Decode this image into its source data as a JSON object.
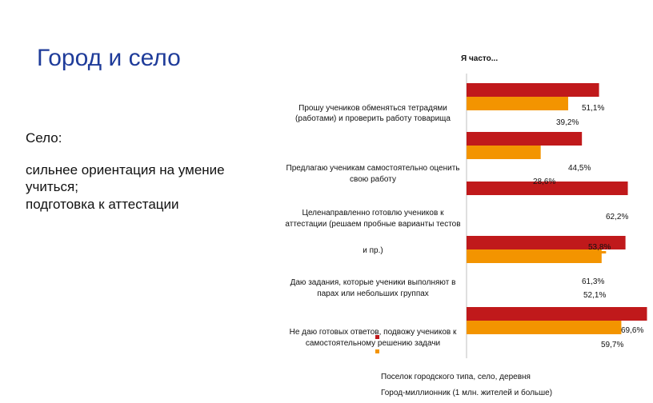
{
  "slide": {
    "title": "Город и село",
    "subtitle": "Село:",
    "points": [
      "сильнее ориентация на умение",
      "учиться;",
      "подготовка к аттестации"
    ]
  },
  "colors": {
    "series_rural": "#c0191b",
    "series_city": "#f39400"
  },
  "chart_data": {
    "type": "bar",
    "orientation": "horizontal",
    "title": "Я часто...",
    "categories": [
      [
        "Прошу учеников обменяться тетрадями",
        "(работами) и проверить работу товарища"
      ],
      [
        "Предлагаю ученикам самостоятельно оценить",
        "свою работу"
      ],
      [
        "Целенаправленно готовлю учеников к",
        "аттестации (решаем пробные варианты тестов",
        "и пр.)"
      ],
      [
        "Даю задания, которые ученики выполняют в",
        "парах или  небольших группах"
      ],
      [
        "Не даю готовых ответов, подвожу учеников к",
        "самостоятельному решению задачи"
      ]
    ],
    "series": [
      {
        "name": "Поселок городского типа, село, деревня",
        "values": [
          51.1,
          44.5,
          62.2,
          61.3,
          69.6
        ]
      },
      {
        "name": "Город-миллионник (1 млн. жителей и больше)",
        "values": [
          39.2,
          28.6,
          53.8,
          52.1,
          59.7
        ]
      }
    ],
    "value_labels": [
      [
        "51,1%",
        "44,5%",
        "62,2%",
        "61,3%",
        "69,6%"
      ],
      [
        "39,2%",
        "28,6%",
        "53,8%",
        "52,1%",
        "59,7%"
      ]
    ],
    "xlim": [
      0,
      100
    ],
    "grid": false,
    "legend": "bottom"
  }
}
